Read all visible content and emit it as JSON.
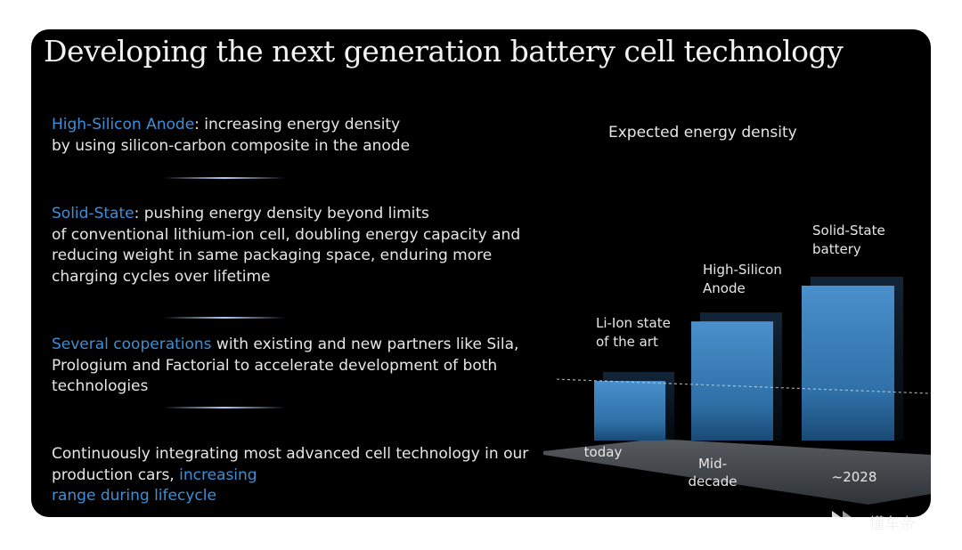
{
  "title": "Developing the next generation battery cell technology",
  "points": [
    {
      "highlight": "High-Silicon Anode",
      "text": ": increasing energy density\nby using silicon-carbon composite in the anode",
      "highlight_position": "start"
    },
    {
      "highlight": "Solid-State",
      "text": ": pushing energy density beyond limits\nof conventional lithium-ion cell, doubling energy capacity and\nreducing weight in same packaging space, enduring more\ncharging cycles over lifetime",
      "highlight_position": "start"
    },
    {
      "highlight": "Several cooperations",
      "text": " with existing and new partners like Sila,\nPrologium and Factorial to accelerate development of both\ntechnologies",
      "highlight_position": "start"
    },
    {
      "highlight": "increasing\nrange during lifecycle",
      "text": "Continuously integrating most advanced cell technology in our\nproduction cars, ",
      "highlight_position": "end"
    }
  ],
  "colors": {
    "highlight": "#3d8fd6",
    "text": "#e6e6e6",
    "background": "#000000",
    "bar": "#3f86c2"
  },
  "chart_data": {
    "type": "bar",
    "title": "Expected energy density",
    "categories": [
      "today",
      "Mid-\ndecade",
      "~2028"
    ],
    "series": [
      {
        "values": [
          1.0,
          2.0,
          2.6
        ]
      }
    ],
    "bar_labels": [
      "Li-Ion state\nof the art",
      "High-Silicon\nAnode",
      "Solid-State\nbattery"
    ],
    "reference_line": {
      "value": 1.0,
      "style": "dashed"
    },
    "axes": "none",
    "grid": false,
    "ylim": [
      0,
      2.8
    ]
  },
  "watermark": {
    "text": "懂车帝",
    "icon": "play-logo-icon"
  }
}
